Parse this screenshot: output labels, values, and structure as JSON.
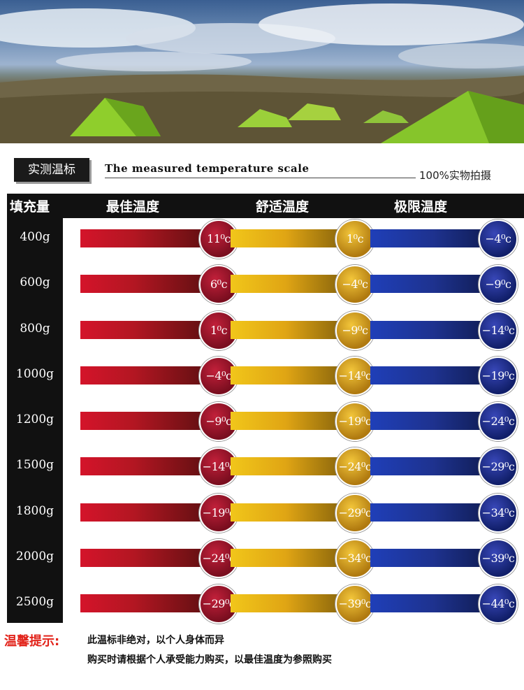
{
  "header": {
    "badge": "实测温标",
    "subtitle": "The measured temperature scale",
    "real_photo": "100%实物拍摄"
  },
  "table": {
    "columns": [
      "填充量",
      "最佳温度",
      "舒适温度",
      "极限温度"
    ],
    "rows": [
      {
        "fill": "400g",
        "best": "11⁰c",
        "comfort": "1⁰c",
        "limit": "−4⁰c"
      },
      {
        "fill": "600g",
        "best": "6⁰c",
        "comfort": "−4⁰c",
        "limit": "−9⁰c"
      },
      {
        "fill": "800g",
        "best": "1⁰c",
        "comfort": "−9⁰c",
        "limit": "−14⁰c"
      },
      {
        "fill": "1000g",
        "best": "−4⁰c",
        "comfort": "−14⁰c",
        "limit": "−19⁰c"
      },
      {
        "fill": "1200g",
        "best": "−9⁰c",
        "comfort": "−19⁰c",
        "limit": "−24⁰c"
      },
      {
        "fill": "1500g",
        "best": "−14⁰c",
        "comfort": "−24⁰c",
        "limit": "−29⁰c"
      },
      {
        "fill": "1800g",
        "best": "−19⁰c",
        "comfort": "−29⁰c",
        "limit": "−34⁰c"
      },
      {
        "fill": "2000g",
        "best": "−24⁰c",
        "comfort": "−34⁰c",
        "limit": "−39⁰c"
      },
      {
        "fill": "2500g",
        "best": "−29⁰c",
        "comfort": "−39⁰c",
        "limit": "−44⁰c"
      }
    ]
  },
  "notes": {
    "label": "温馨提示:",
    "line1": "此温标非绝对，以个人身体而异",
    "line2": "购买时请根据个人承受能力购买，以最佳温度为参照购买"
  },
  "colors": {
    "best": "#b31622",
    "comfort": "#e0a514",
    "limit": "#1e328f",
    "note_label": "#e2231a"
  }
}
